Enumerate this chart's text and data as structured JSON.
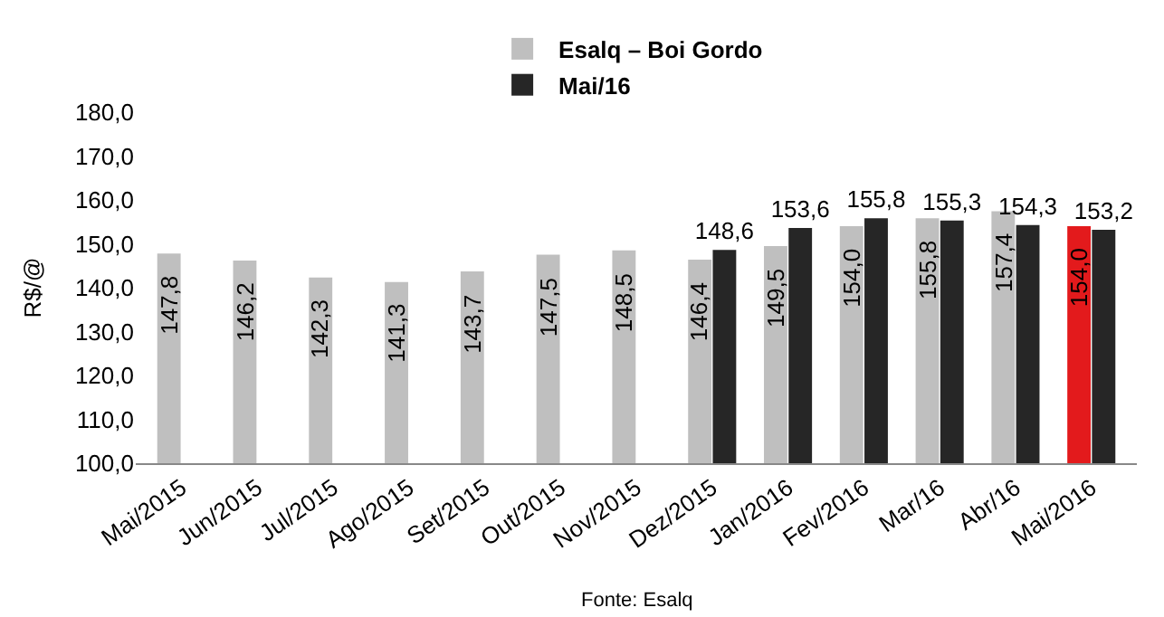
{
  "chart_data": {
    "type": "bar",
    "categories": [
      "Mai/2015",
      "Jun/2015",
      "Jul/2015",
      "Ago/2015",
      "Set/2015",
      "Out/2015",
      "Nov/2015",
      "Dez/2015",
      "Jan/2016",
      "Fev/2016",
      "Mar/16",
      "Abr/16",
      "Mai/2016"
    ],
    "series": [
      {
        "name": "Esalq – Boi Gordo",
        "color": "#bfbfbf",
        "colors": [
          "#bfbfbf",
          "#bfbfbf",
          "#bfbfbf",
          "#bfbfbf",
          "#bfbfbf",
          "#bfbfbf",
          "#bfbfbf",
          "#bfbfbf",
          "#bfbfbf",
          "#bfbfbf",
          "#bfbfbf",
          "#bfbfbf",
          "#e31a1c"
        ],
        "values": [
          147.8,
          146.2,
          142.3,
          141.3,
          143.7,
          147.5,
          148.5,
          146.4,
          149.5,
          154.0,
          155.8,
          157.4,
          154.0
        ],
        "value_labels": [
          "147,8",
          "146,2",
          "142,3",
          "141,3",
          "143,7",
          "147,5",
          "148,5",
          "146,4",
          "149,5",
          "154,0",
          "155,8",
          "157,4",
          "154,0"
        ]
      },
      {
        "name": "Mai/16",
        "color": "#262626",
        "values": [
          null,
          null,
          null,
          null,
          null,
          null,
          null,
          148.6,
          153.6,
          155.8,
          155.3,
          154.3,
          153.2
        ],
        "value_labels": [
          null,
          null,
          null,
          null,
          null,
          null,
          null,
          "148,6",
          "153,6",
          "155,8",
          "155,3",
          "154,3",
          "153,2"
        ]
      }
    ],
    "ylabel": "R$/@",
    "ylim": [
      100,
      180
    ],
    "yticks": [
      {
        "value": 100,
        "label": "100,0"
      },
      {
        "value": 110,
        "label": "110,0"
      },
      {
        "value": 120,
        "label": "120,0"
      },
      {
        "value": 130,
        "label": "130,0"
      },
      {
        "value": 140,
        "label": "140,0"
      },
      {
        "value": 150,
        "label": "150,0"
      },
      {
        "value": 160,
        "label": "160,0"
      },
      {
        "value": 170,
        "label": "170,0"
      },
      {
        "value": 180,
        "label": "180,0"
      }
    ],
    "legend": "top",
    "annotations": [
      "Fonte: Esalq"
    ]
  }
}
